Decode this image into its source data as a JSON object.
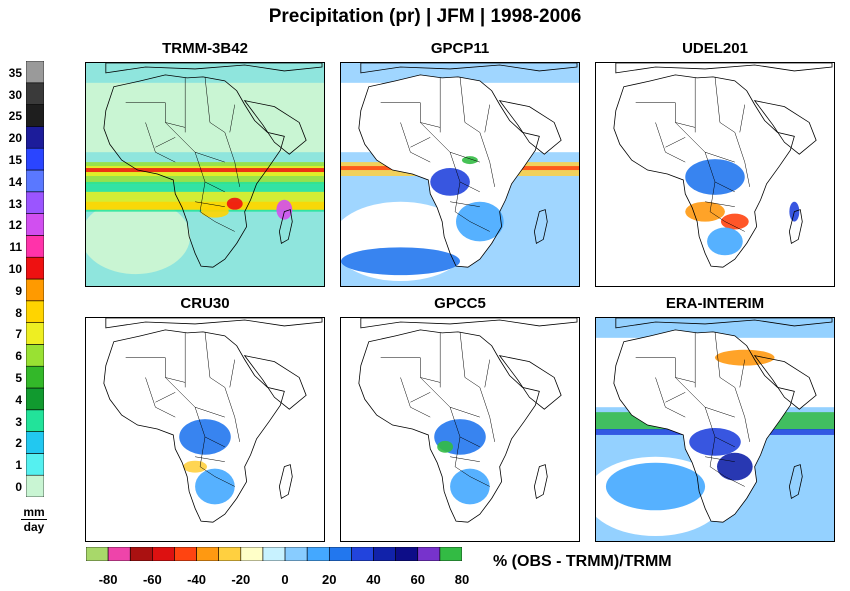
{
  "title": "Precipitation (pr) | JFM | 1998-2006",
  "chart_data": {
    "type": "heatmap",
    "title": "Precipitation (pr) | JFM | 1998-2006",
    "panels": [
      {
        "name": "TRMM-3B42",
        "quantity": "mm/day"
      },
      {
        "name": "GPCP11",
        "quantity": "% difference"
      },
      {
        "name": "UDEL201",
        "quantity": "% difference"
      },
      {
        "name": "CRU30",
        "quantity": "% difference"
      },
      {
        "name": "GPCC5",
        "quantity": "% difference"
      },
      {
        "name": "ERA-INTERIM",
        "quantity": "% difference"
      }
    ],
    "absolute_scale": {
      "unit_num": "mm",
      "unit_den": "day",
      "ticks": [
        "0",
        "1",
        "2",
        "3",
        "4",
        "5",
        "6",
        "7",
        "8",
        "9",
        "10",
        "11",
        "12",
        "13",
        "14",
        "15",
        "20",
        "25",
        "30",
        "35"
      ],
      "colors": [
        "#c9f5d3",
        "#55f0f0",
        "#22c8f0",
        "#22e39a",
        "#119a2f",
        "#33b829",
        "#99e133",
        "#eeee22",
        "#ffd400",
        "#ff9a00",
        "#ee1111",
        "#ff33aa",
        "#d14ff0",
        "#9b55ff",
        "#5a78ff",
        "#2a45ff",
        "#1c1c9a",
        "#1e1e1e",
        "#3a3a3a",
        "#9a9a9a",
        "#dddddd",
        "#f2d4c0",
        "#deaa80",
        "#c48a55",
        "#8a5a30"
      ]
    },
    "difference_scale": {
      "label": "%  (OBS - TRMM)/TRMM",
      "ticks": [
        "-80",
        "-60",
        "-40",
        "-20",
        "0",
        "20",
        "40",
        "60",
        "80"
      ],
      "colors": [
        "#a8d86a",
        "#ee44aa",
        "#aa1111",
        "#dd1111",
        "#ff4411",
        "#ff9911",
        "#ffd040",
        "#ffffc8",
        "#c8f2ff",
        "#88ccff",
        "#44a8ff",
        "#2277ee",
        "#2244dd",
        "#1122aa",
        "#0d0d88",
        "#7733cc",
        "#33bb44"
      ]
    }
  }
}
